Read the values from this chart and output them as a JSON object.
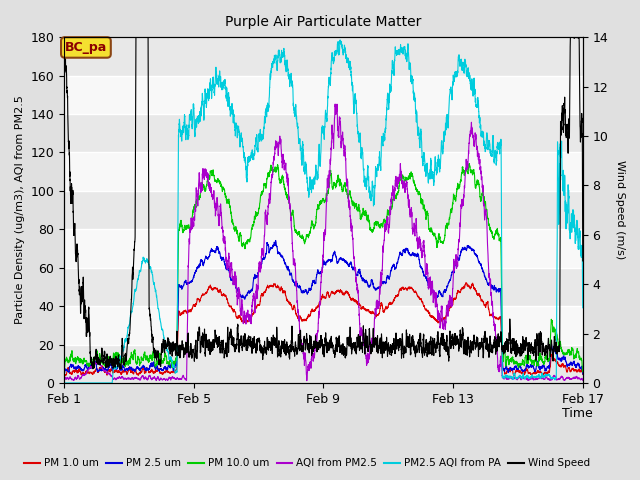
{
  "title": "Purple Air Particulate Matter",
  "xlabel": "Time",
  "ylabel_left": "Particle Density (ug/m3), AQI from PM2.5",
  "ylabel_right": "Wind Speed (m/s)",
  "annotation": "BC_pa",
  "ylim_left": [
    0,
    180
  ],
  "ylim_right": [
    0,
    14
  ],
  "xtick_labels": [
    "Feb 1",
    "Feb 5",
    "Feb 9",
    "Feb 13",
    "Feb 17"
  ],
  "yticks_left": [
    0,
    20,
    40,
    60,
    80,
    100,
    120,
    140,
    160,
    180
  ],
  "yticks_right": [
    0,
    2,
    4,
    6,
    8,
    10,
    12,
    14
  ],
  "legend": [
    {
      "label": "PM 1.0 um",
      "color": "#dd0000"
    },
    {
      "label": "PM 2.5 um",
      "color": "#0000dd"
    },
    {
      "label": "PM 10.0 um",
      "color": "#00cc00"
    },
    {
      "label": "AQI from PM2.5",
      "color": "#aa00cc"
    },
    {
      "label": "PM2.5 AQI from PA",
      "color": "#00ccdd"
    },
    {
      "label": "Wind Speed",
      "color": "#000000"
    }
  ],
  "bg_color": "#e0e0e0",
  "plot_bg_color": "#f0f0f0",
  "n_points": 5000,
  "seed": 12345
}
